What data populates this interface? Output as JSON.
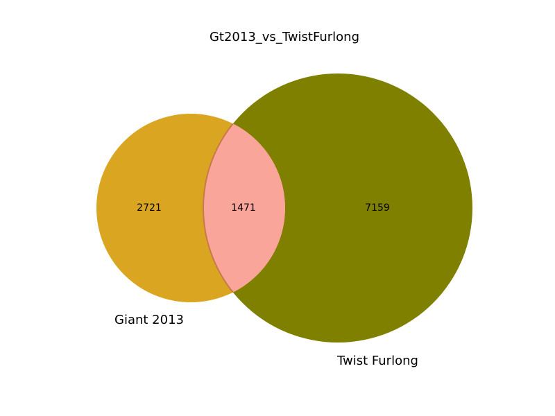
{
  "diagram": {
    "title": "Gt2013_vs_TwistFurlong",
    "sets": [
      {
        "name": "Giant 2013",
        "color": "#DAA520"
      },
      {
        "name": "Twist Furlong",
        "color": "#808000"
      }
    ],
    "regions": {
      "only_a": 2721,
      "both": 1471,
      "only_b": 7159
    },
    "intersection_color": "#FAA59A",
    "intersection_edge_color": "#C87A4A"
  }
}
